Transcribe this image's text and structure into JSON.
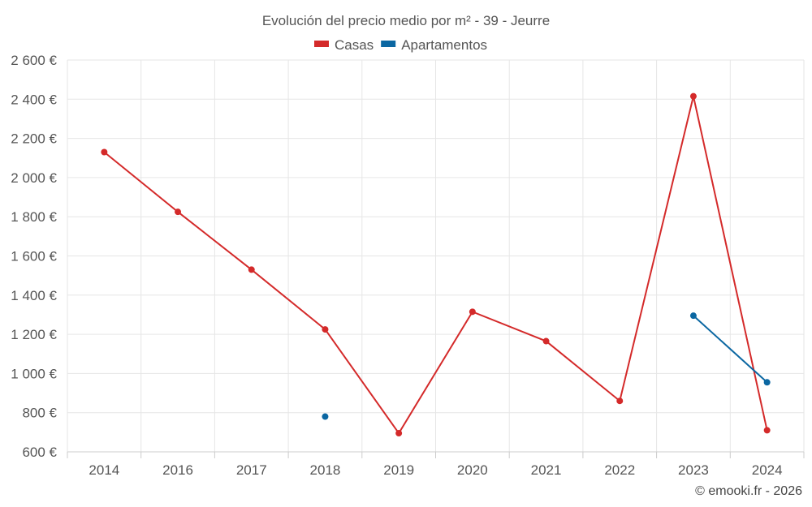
{
  "chart_data": {
    "type": "line",
    "title": "Evolución del precio medio por m² - 39 - Jeurre",
    "categories": [
      "2014",
      "2016",
      "2017",
      "2018",
      "2019",
      "2020",
      "2021",
      "2022",
      "2023",
      "2024"
    ],
    "series": [
      {
        "name": "Casas",
        "color": "#d42a2a",
        "values": [
          2130,
          1825,
          1530,
          1225,
          695,
          1315,
          1165,
          860,
          2415,
          710
        ]
      },
      {
        "name": "Apartamentos",
        "color": "#0b67a2",
        "values": [
          null,
          null,
          null,
          780,
          null,
          null,
          null,
          null,
          1295,
          955
        ]
      }
    ],
    "y_ticks": [
      "600 €",
      "800 €",
      "1 000 €",
      "1 200 €",
      "1 400 €",
      "1 600 €",
      "1 800 €",
      "2 000 €",
      "2 200 €",
      "2 400 €",
      "2 600 €"
    ],
    "ylim": [
      600,
      2600
    ],
    "grid": true,
    "legend_position": "top-center",
    "credit": "© emooki.fr - 2026"
  }
}
